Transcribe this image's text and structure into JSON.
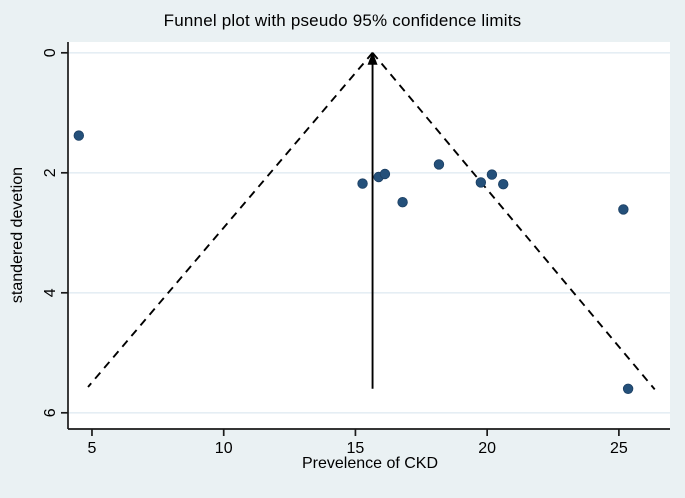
{
  "figure": {
    "background_color": "#eaf1f3",
    "plot_background_color": "#ffffff",
    "gridline_color": "#e5eef4",
    "axis_color": "#1a1a1a",
    "line_color": "#000000"
  },
  "chart_data": {
    "type": "scatter",
    "title": "Funnel plot with pseudo 95% confidence limits",
    "xlabel": "Prevelence of CKD",
    "ylabel": "standered devetion",
    "x_ticks": [
      5,
      10,
      15,
      20,
      25
    ],
    "y_ticks": [
      0,
      2,
      4,
      6
    ],
    "xlim": [
      4.09,
      26.94
    ],
    "ylim": [
      -0.18,
      6.27
    ],
    "y_axis_inverted": true,
    "grid": "horizontal gridlines at y ticks only",
    "legend_position": "none",
    "marker_color": "#24507a",
    "marker_edge_color": "#1c3f63",
    "points": [
      {
        "x": 4.5,
        "y": 1.38
      },
      {
        "x": 15.27,
        "y": 2.18
      },
      {
        "x": 15.88,
        "y": 2.07
      },
      {
        "x": 16.12,
        "y": 2.02
      },
      {
        "x": 16.79,
        "y": 2.49
      },
      {
        "x": 18.17,
        "y": 1.86
      },
      {
        "x": 19.76,
        "y": 2.16
      },
      {
        "x": 20.18,
        "y": 2.03
      },
      {
        "x": 20.61,
        "y": 2.19
      },
      {
        "x": 25.17,
        "y": 2.61
      },
      {
        "x": 25.35,
        "y": 5.6
      }
    ],
    "funnel": {
      "style": "dashed",
      "apex": {
        "x": 15.65,
        "y": 0
      },
      "left_end": {
        "x": 4.85,
        "y": 5.57
      },
      "right_end": {
        "x": 26.36,
        "y": 5.61
      },
      "vertical_line": {
        "x": 15.65,
        "y_from": 0,
        "y_to": 5.6,
        "arrowhead": "up"
      }
    }
  }
}
